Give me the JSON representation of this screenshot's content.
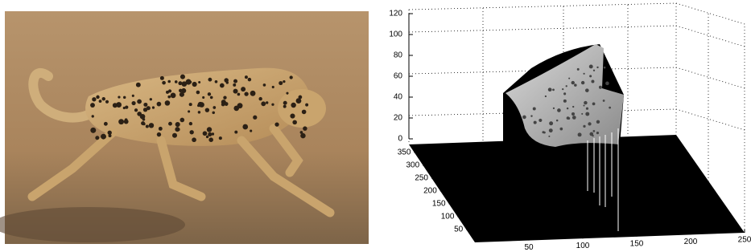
{
  "plot": {
    "zticks": [
      0,
      20,
      40,
      60,
      80,
      100,
      120
    ],
    "yticks": [
      50,
      100,
      150,
      200,
      250,
      300,
      350
    ],
    "xticks": [
      50,
      100,
      150,
      200,
      250
    ]
  }
}
